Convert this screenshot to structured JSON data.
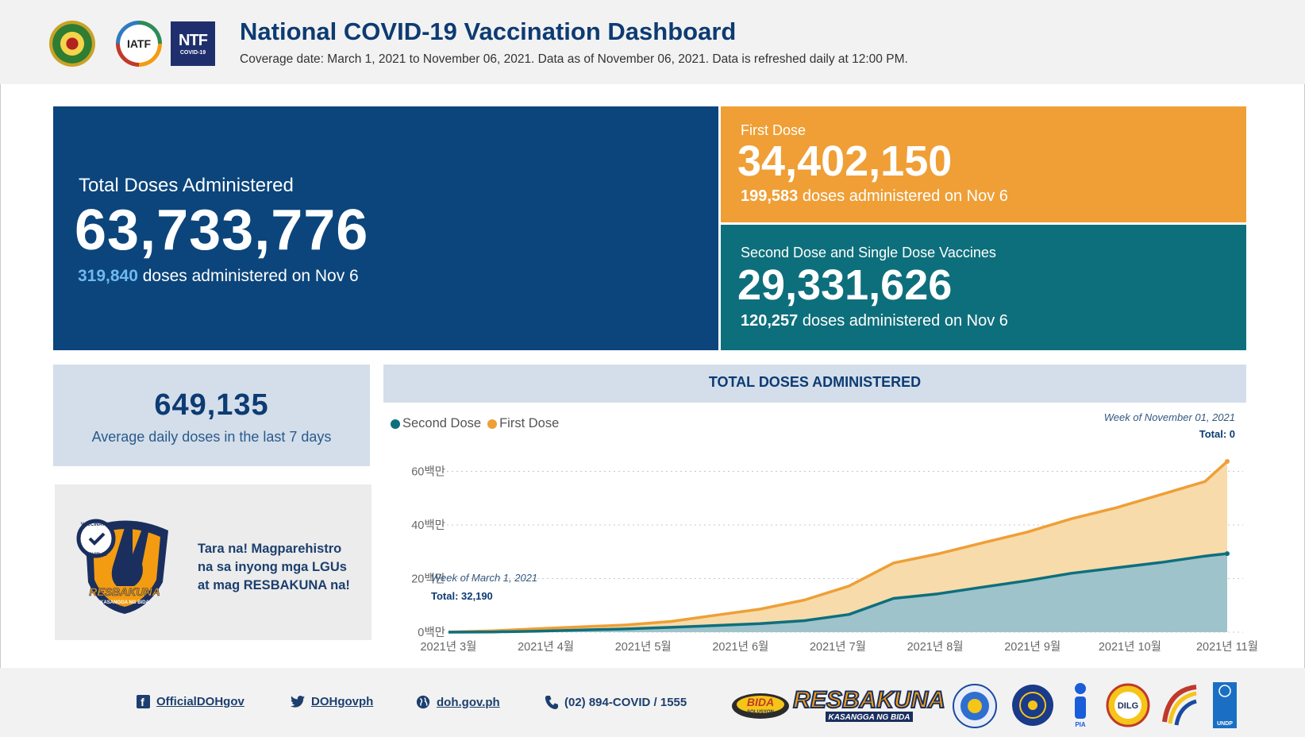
{
  "header": {
    "logos": [
      {
        "name": "Department of Health seal",
        "text": ""
      },
      {
        "name": "IATF logo",
        "text": "IATF"
      },
      {
        "name": "NTF logo",
        "text": "NTF",
        "subtext": "COVID-19"
      }
    ],
    "title": "National COVID-19 Vaccination Dashboard",
    "subtitle": "Coverage date: March 1, 2021 to November 06, 2021. Data as of November 06, 2021. Data is refreshed daily at 12:00 PM."
  },
  "kpis": {
    "total": {
      "label": "Total Doses Administered",
      "value": "63,733,776",
      "daily_value": "319,840",
      "daily_suffix": " doses administered on Nov 6",
      "color": "#0b457c"
    },
    "first": {
      "label": "First Dose",
      "value": "34,402,150",
      "daily_value": "199,583",
      "daily_suffix": " doses administered on Nov 6",
      "color": "#ef9f36"
    },
    "second": {
      "label": "Second Dose and Single Dose Vaccines",
      "value": "29,331,626",
      "daily_value": "120,257",
      "daily_suffix": " doses administered on Nov 6",
      "color": "#0e6f7c"
    }
  },
  "average": {
    "value": "649,135",
    "label": "Average daily doses in the last 7 days"
  },
  "promo": {
    "badge_top": "VACCINATED",
    "badge_side": "COVID-19",
    "badge_brand": "RESBAKUNA",
    "badge_tag": "KASANGGA NG BIDA",
    "lines": [
      "Tara na! Magparehistro",
      "na sa inyong mga LGUs",
      "at mag RESBAKUNA na!"
    ]
  },
  "chart_panel": {
    "title": "TOTAL DOSES ADMINISTERED",
    "legend": [
      {
        "label": "Second Dose",
        "color": "#0e6f7c"
      },
      {
        "label": "First Dose",
        "color": "#ef9f36"
      }
    ],
    "tooltip_end": {
      "week": "Week of November 01, 2021",
      "total": "Total: 0"
    },
    "tooltip_start": {
      "week": "Week of March 1, 2021",
      "total": "Total: 32,190"
    }
  },
  "chart_data": {
    "type": "area",
    "title": "TOTAL DOSES ADMINISTERED",
    "xlabel": "",
    "ylabel": "",
    "x_ticks": [
      "2021년 3월",
      "2021년 4월",
      "2021년 5월",
      "2021년 6월",
      "2021년 7월",
      "2021년 8월",
      "2021년 9월",
      "2021년 10월",
      "2021년 11월"
    ],
    "y_ticks": [
      "0백만",
      "20백만",
      "40백만",
      "60백만"
    ],
    "ylim": [
      0,
      64000000
    ],
    "stacked": true,
    "grid": true,
    "x_unit": "weeks since Mar 1, 2021",
    "x": [
      0,
      2,
      4,
      6,
      8,
      10,
      12,
      14,
      16,
      18,
      20,
      22,
      24,
      26,
      28,
      30,
      32,
      34,
      35
    ],
    "series": [
      {
        "name": "Second Dose",
        "color": "#0e6f7c",
        "values": [
          0,
          0.1,
          0.4,
          0.8,
          1.2,
          1.8,
          2.5,
          3.2,
          4.3,
          6.6,
          12.6,
          14.3,
          16.8,
          19.2,
          22.0,
          24.0,
          26.0,
          28.4,
          29.3
        ]
      },
      {
        "name": "First Dose",
        "color": "#ef9f36",
        "values": [
          0.03,
          0.4,
          0.9,
          1.2,
          1.5,
          2.2,
          3.8,
          5.4,
          7.7,
          10.6,
          13.2,
          14.9,
          16.5,
          18.1,
          20.3,
          22.4,
          25.3,
          27.8,
          34.4
        ]
      }
    ],
    "value_unit": "millions of doses"
  },
  "footer": {
    "links": [
      {
        "icon": "facebook-icon",
        "label": "OfficialDOHgov"
      },
      {
        "icon": "twitter-icon",
        "label": "DOHgovph"
      },
      {
        "icon": "globe-icon",
        "label": "doh.gov.ph"
      },
      {
        "icon": "phone-icon",
        "label": "(02) 894-COVID / 1555"
      }
    ],
    "logos": {
      "bida": "BIDA",
      "bida_sub": "SOLUSYON",
      "resbakuna": "RESBAKUNA",
      "resbakuna_sub": "KASANGGA NG BIDA",
      "pia": "PIA",
      "dilg": "DILG",
      "undp": "UNDP"
    }
  }
}
